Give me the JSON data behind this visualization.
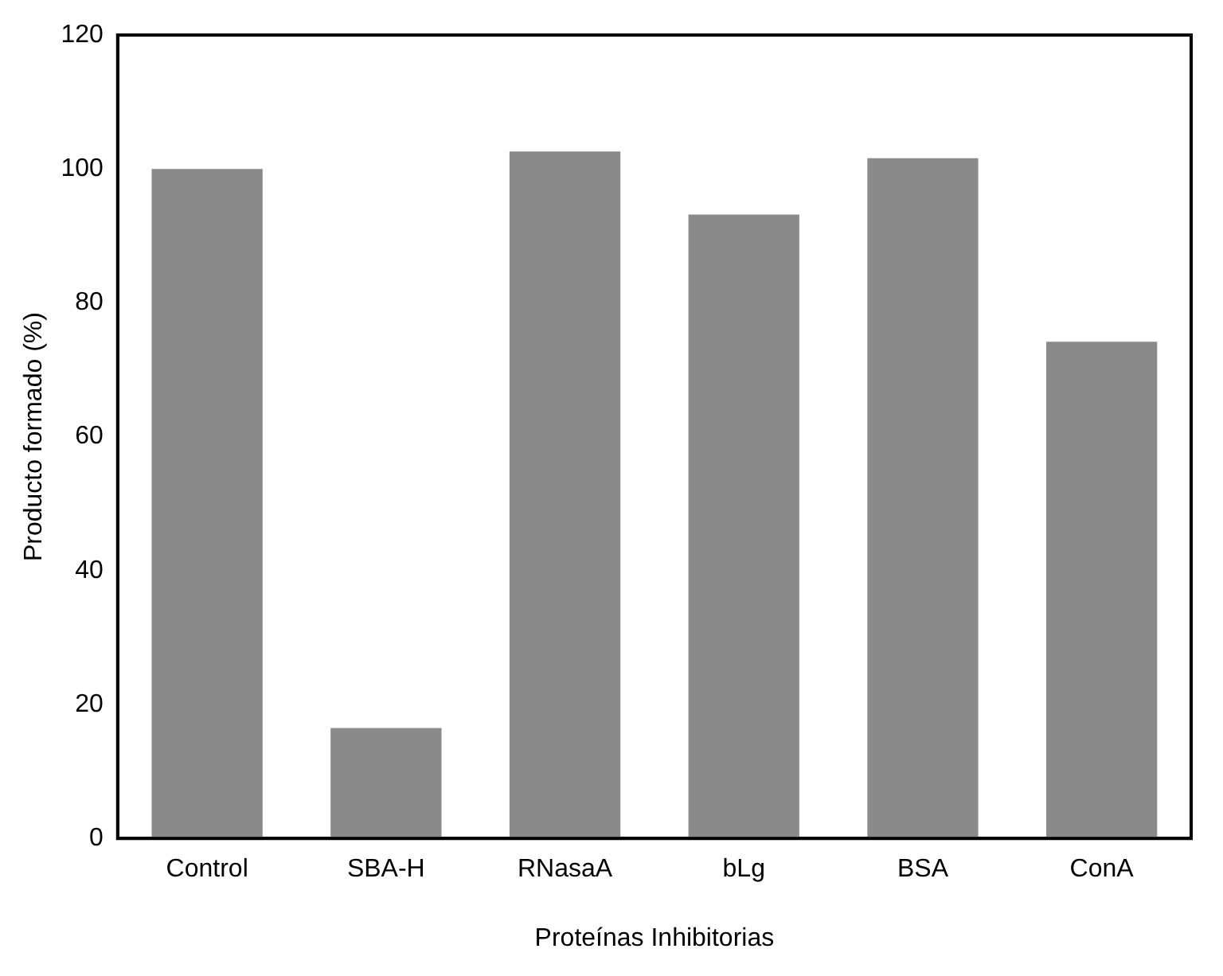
{
  "chart_data": {
    "type": "bar",
    "xlabel": "Proteínas Inhibitorias",
    "ylabel": "Producto formado (%)",
    "categories": [
      "Control",
      "SBA-H",
      "RNasaA",
      "bLg",
      "BSA",
      "ConA"
    ],
    "values": [
      100,
      16.5,
      102.6,
      93.2,
      101.6,
      74.2
    ],
    "color": "#8a8a8a",
    "ylim": [
      0,
      120
    ],
    "yticks": [
      0,
      20,
      40,
      60,
      80,
      100,
      120
    ],
    "grid": false,
    "legend": false
  }
}
